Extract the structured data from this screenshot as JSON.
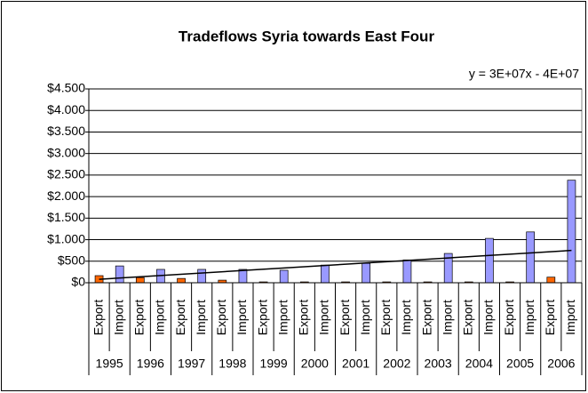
{
  "chart_data": {
    "type": "bar",
    "title": "Tradeflows Syria towards East Four",
    "categories": [
      "1995",
      "1996",
      "1997",
      "1998",
      "1999",
      "2000",
      "2001",
      "2002",
      "2003",
      "2004",
      "2005",
      "2006"
    ],
    "series": [
      {
        "name": "Export",
        "color": "#ff6600",
        "values": [
          165,
          120,
          100,
          60,
          20,
          20,
          20,
          20,
          20,
          20,
          20,
          130
        ]
      },
      {
        "name": "Import",
        "color": "#9999ff",
        "values": [
          390,
          310,
          310,
          310,
          290,
          410,
          450,
          530,
          680,
          1030,
          1180,
          2380
        ]
      }
    ],
    "trendline": {
      "label": "y = 3E+07x - 4E+07",
      "values": [
        80,
        750
      ]
    },
    "ylim": [
      0,
      4500
    ],
    "yticks": [
      {
        "value": 0,
        "label": "$0"
      },
      {
        "value": 500,
        "label": "$500"
      },
      {
        "value": 1000,
        "label": "$1.000"
      },
      {
        "value": 1500,
        "label": "$1.500"
      },
      {
        "value": 2000,
        "label": "$2.000"
      },
      {
        "value": 2500,
        "label": "$2.500"
      },
      {
        "value": 3000,
        "label": "$3.000"
      },
      {
        "value": 3500,
        "label": "$3.500"
      },
      {
        "value": 4000,
        "label": "$4.000"
      },
      {
        "value": 4500,
        "label": "$4.500"
      }
    ],
    "grid": true
  }
}
